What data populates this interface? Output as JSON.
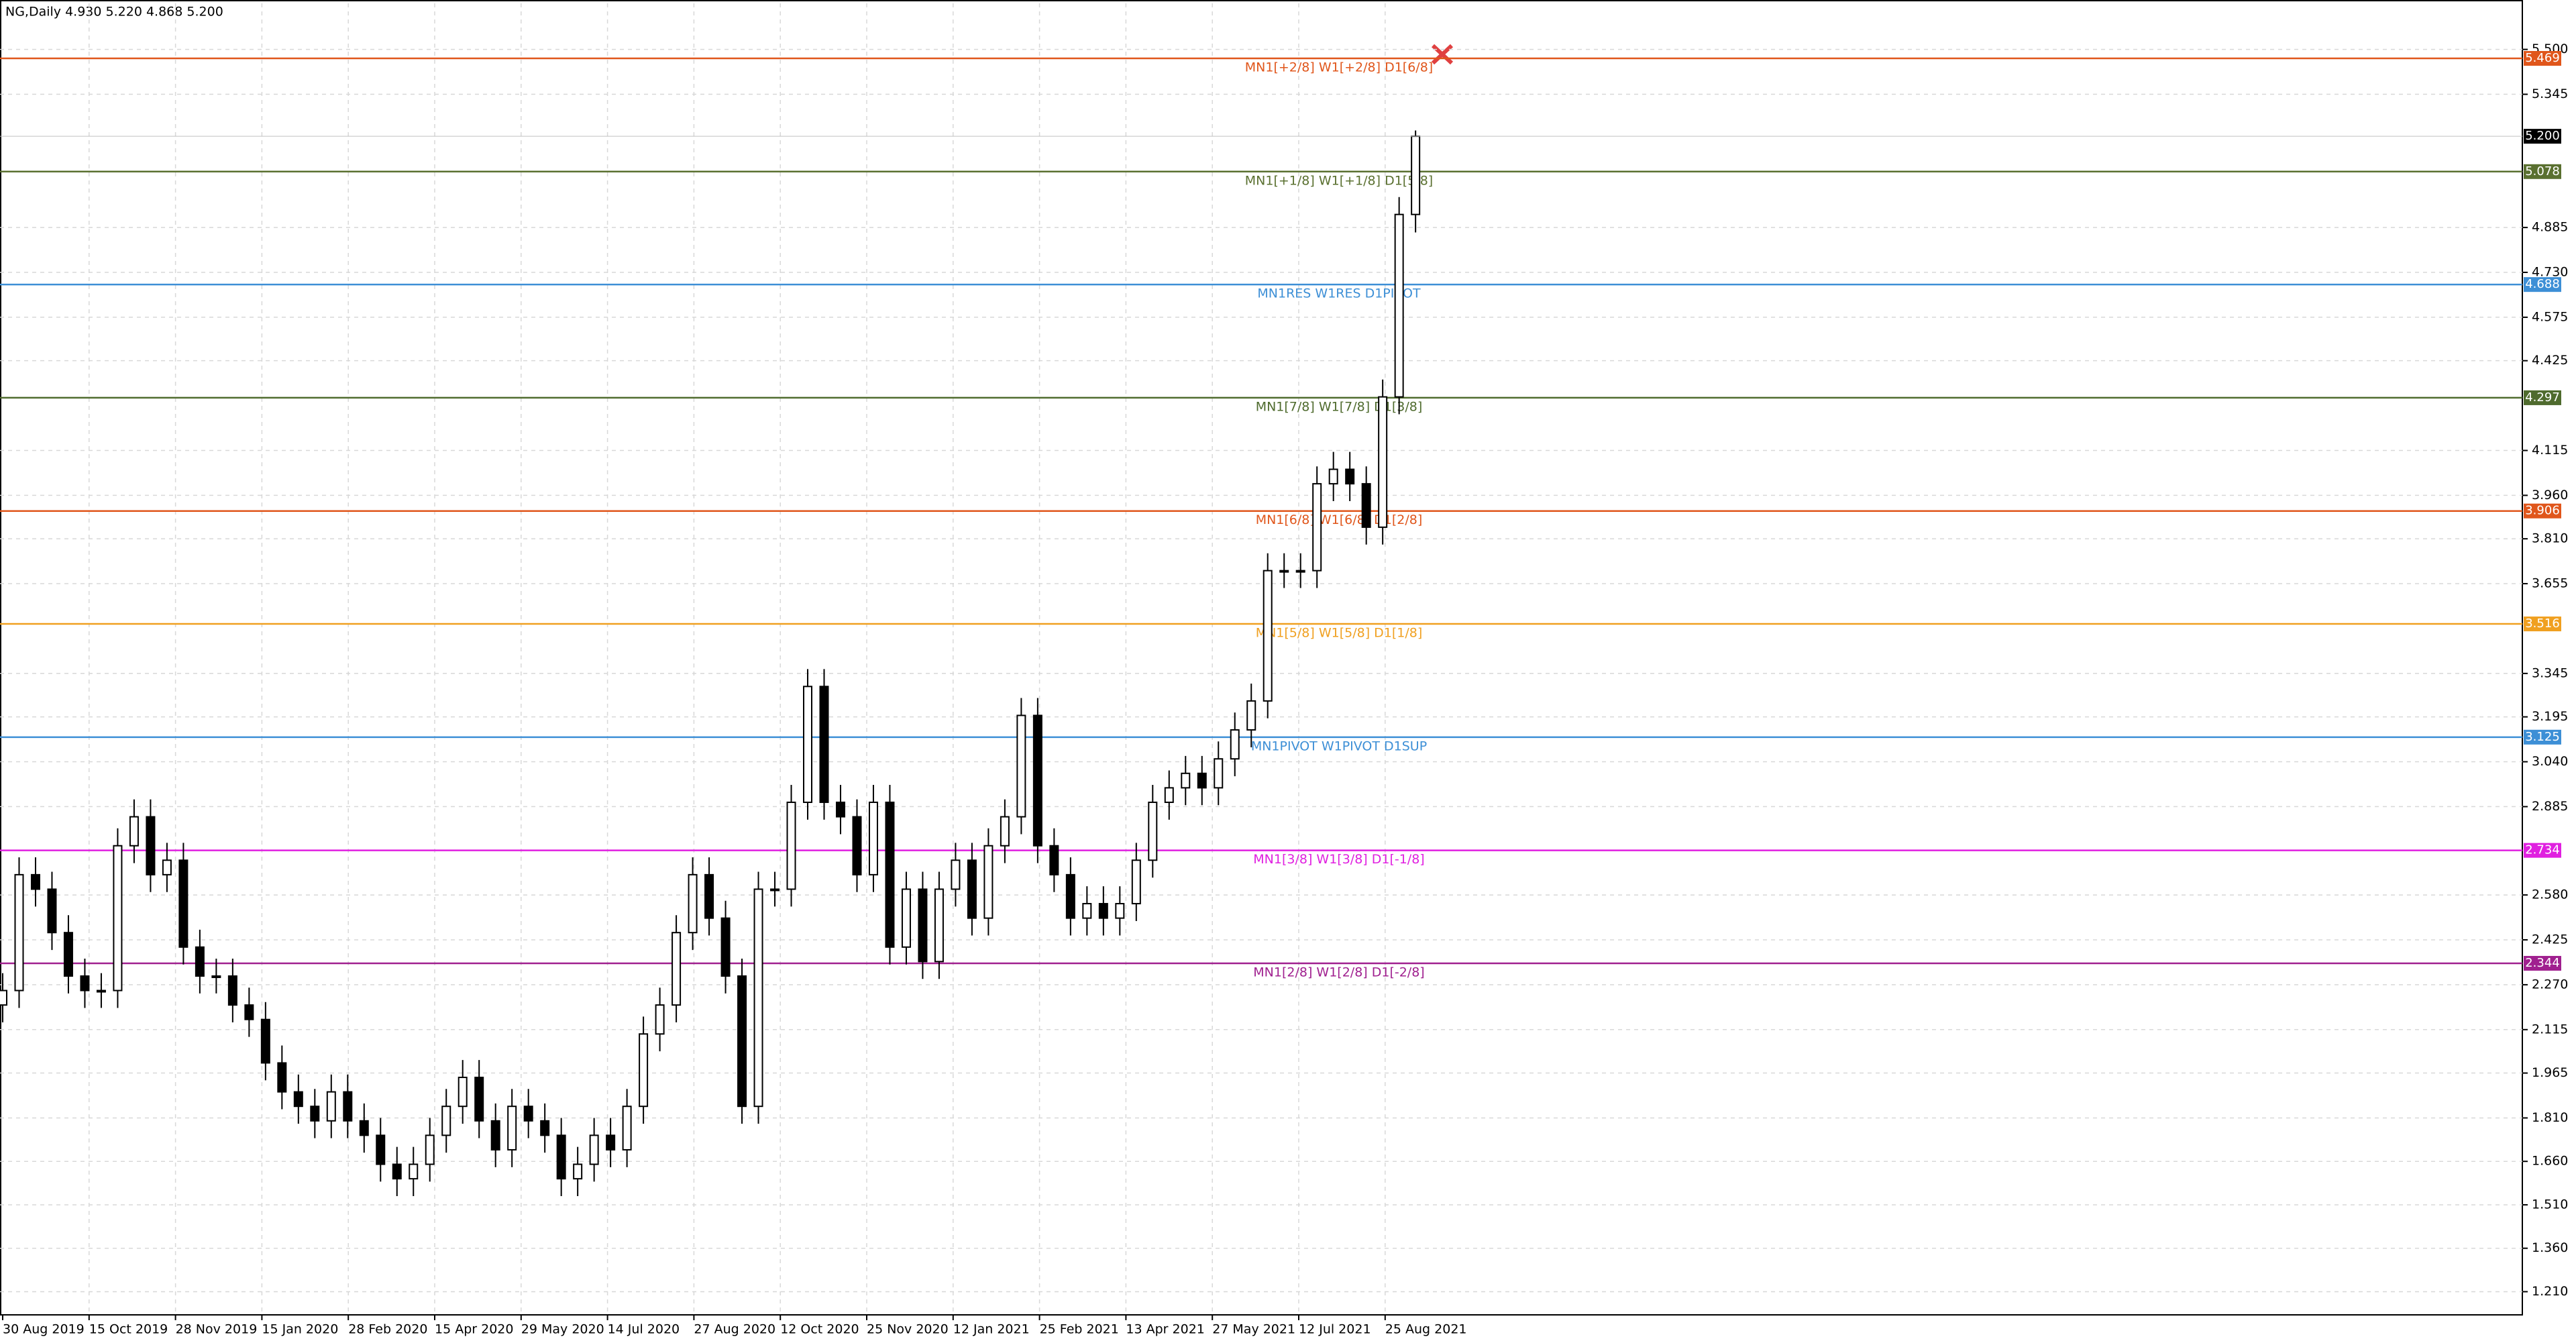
{
  "chart_data": {
    "type": "candlestick",
    "title": "NG,Daily  4.930 5.220 4.868 5.200",
    "up_color": "#ffffff",
    "down_color": "#000000",
    "wick_color": "#000000",
    "grid": true,
    "ylim": [
      1.13,
      5.659
    ],
    "yticks": [
      {
        "value": 5.5,
        "label": "5.500"
      },
      5.345,
      4.885,
      {
        "value": 4.73,
        "label": "4.730"
      },
      4.575,
      4.425,
      4.115,
      {
        "value": 3.96,
        "label": "3.960"
      },
      {
        "value": 3.81,
        "label": "3.810"
      },
      3.655,
      3.345,
      3.195,
      {
        "value": 3.04,
        "label": "3.040"
      },
      2.885,
      {
        "value": 2.58,
        "label": "2.580"
      },
      2.425,
      {
        "value": 2.27,
        "label": "2.270"
      },
      2.115,
      1.965,
      {
        "value": 1.81,
        "label": "1.810"
      },
      {
        "value": 1.66,
        "label": "1.660"
      },
      {
        "value": 1.51,
        "label": "1.510"
      },
      {
        "value": 1.36,
        "label": "1.360"
      },
      {
        "value": 1.21,
        "label": "1.210"
      }
    ],
    "x_labels": [
      "30 Aug 2019",
      "15 Oct 2019",
      "28 Nov 2019",
      "15 Jan 2020",
      "28 Feb 2020",
      "15 Apr 2020",
      "29 May 2020",
      "14 Jul 2020",
      "27 Aug 2020",
      "12 Oct 2020",
      "25 Nov 2020",
      "12 Jan 2021",
      "25 Feb 2021",
      "13 Apr 2021",
      "27 May 2021",
      "12 Jul 2021",
      "25 Aug 2021"
    ],
    "open": [
      2.2,
      2.25,
      2.65,
      2.6,
      2.45,
      2.3,
      2.25,
      2.25,
      2.75,
      2.85,
      2.65,
      2.7,
      2.4,
      2.3,
      2.3,
      2.2,
      2.15,
      2.0,
      1.9,
      1.85,
      1.8,
      1.9,
      1.8,
      1.75,
      1.65,
      1.6,
      1.65,
      1.75,
      1.85,
      1.95,
      1.8,
      1.7,
      1.85,
      1.8,
      1.75,
      1.6,
      1.65,
      1.75,
      1.7,
      1.85,
      2.1,
      2.2,
      2.45,
      2.65,
      2.5,
      2.3,
      1.85,
      2.6,
      2.6,
      2.9,
      3.3,
      2.9,
      2.85,
      2.65,
      2.9,
      2.4,
      2.6,
      2.35,
      2.6,
      2.7,
      2.5,
      2.75,
      2.85,
      3.2,
      2.75,
      2.65,
      2.5,
      2.55,
      2.5,
      2.55,
      2.7,
      2.9,
      2.95,
      3.0,
      2.95,
      3.05,
      3.15,
      3.25,
      3.7,
      3.7,
      3.7,
      4.0,
      4.05,
      4.0,
      3.85,
      4.3,
      4.93
    ],
    "high": [
      2.31,
      2.71,
      2.71,
      2.66,
      2.51,
      2.36,
      2.31,
      2.81,
      2.91,
      2.91,
      2.76,
      2.76,
      2.46,
      2.36,
      2.36,
      2.26,
      2.21,
      2.06,
      1.96,
      1.91,
      1.96,
      1.96,
      1.86,
      1.81,
      1.71,
      1.71,
      1.81,
      1.91,
      2.01,
      2.01,
      1.86,
      1.91,
      1.91,
      1.86,
      1.81,
      1.71,
      1.81,
      1.81,
      1.91,
      2.16,
      2.26,
      2.51,
      2.71,
      2.71,
      2.56,
      2.36,
      2.66,
      2.66,
      2.96,
      3.36,
      3.36,
      2.96,
      2.91,
      2.96,
      2.96,
      2.66,
      2.66,
      2.66,
      2.76,
      2.76,
      2.81,
      2.91,
      3.26,
      3.26,
      2.81,
      2.71,
      2.61,
      2.61,
      2.61,
      2.76,
      2.96,
      3.01,
      3.06,
      3.06,
      3.11,
      3.21,
      3.31,
      3.76,
      3.76,
      3.76,
      4.06,
      4.11,
      4.11,
      4.06,
      4.36,
      4.99,
      5.22
    ],
    "low": [
      2.14,
      2.19,
      2.54,
      2.39,
      2.24,
      2.19,
      2.19,
      2.19,
      2.69,
      2.59,
      2.59,
      2.34,
      2.24,
      2.24,
      2.14,
      2.09,
      1.94,
      1.84,
      1.79,
      1.74,
      1.74,
      1.74,
      1.69,
      1.59,
      1.54,
      1.54,
      1.59,
      1.69,
      1.79,
      1.74,
      1.64,
      1.64,
      1.74,
      1.69,
      1.54,
      1.54,
      1.59,
      1.64,
      1.64,
      1.79,
      2.04,
      2.14,
      2.39,
      2.44,
      2.24,
      1.79,
      1.79,
      2.54,
      2.54,
      2.84,
      2.84,
      2.79,
      2.59,
      2.59,
      2.34,
      2.34,
      2.29,
      2.29,
      2.54,
      2.44,
      2.44,
      2.69,
      2.79,
      2.69,
      2.59,
      2.44,
      2.44,
      2.44,
      2.44,
      2.49,
      2.64,
      2.84,
      2.89,
      2.89,
      2.89,
      2.99,
      3.09,
      3.19,
      3.64,
      3.64,
      3.64,
      3.94,
      3.94,
      3.79,
      3.79,
      4.24,
      4.868
    ],
    "close": [
      2.25,
      2.65,
      2.6,
      2.45,
      2.3,
      2.25,
      2.25,
      2.75,
      2.85,
      2.65,
      2.7,
      2.4,
      2.3,
      2.3,
      2.2,
      2.15,
      2.0,
      1.9,
      1.85,
      1.8,
      1.9,
      1.8,
      1.75,
      1.65,
      1.6,
      1.65,
      1.75,
      1.85,
      1.95,
      1.8,
      1.7,
      1.85,
      1.8,
      1.75,
      1.6,
      1.65,
      1.75,
      1.7,
      1.85,
      2.1,
      2.2,
      2.45,
      2.65,
      2.5,
      2.3,
      1.85,
      2.6,
      2.6,
      2.9,
      3.3,
      2.9,
      2.85,
      2.65,
      2.9,
      2.4,
      2.6,
      2.35,
      2.6,
      2.7,
      2.5,
      2.75,
      2.85,
      3.2,
      2.75,
      2.65,
      2.5,
      2.55,
      2.5,
      2.55,
      2.7,
      2.9,
      2.95,
      3.0,
      2.95,
      3.05,
      3.15,
      3.25,
      3.7,
      3.7,
      3.7,
      4.0,
      4.05,
      4.0,
      3.85,
      4.3,
      4.93,
      5.2
    ],
    "levels": [
      {
        "name": "MN1[+2/8] W1[+2/8] D1[6/8]",
        "value": 5.469,
        "color": "#e0561b"
      },
      {
        "name": "MN1[+1/8] W1[+1/8] D1[5/8]",
        "value": 5.078,
        "color": "#5a7030"
      },
      {
        "name": "MN1RES W1RES D1PIVOT",
        "value": 4.688,
        "color": "#3d8fd6"
      },
      {
        "name": "MN1[7/8] W1[7/8] D1[3/8]",
        "value": 4.297,
        "color": "#4f6b2e"
      },
      {
        "name": "MN1[6/8] W1[6/8] D1[2/8]",
        "value": 3.906,
        "color": "#e0561b"
      },
      {
        "name": "MN1[5/8] W1[5/8] D1[1/8]",
        "value": 3.516,
        "color": "#f0a020"
      },
      {
        "name": "MN1PIVOT W1PIVOT D1SUP",
        "value": 3.125,
        "color": "#3d8fd6"
      },
      {
        "name": "MN1[3/8] W1[3/8] D1[-1/8]",
        "value": 2.734,
        "color": "#e020e0"
      },
      {
        "name": "MN1[2/8] W1[2/8] D1[-2/8]",
        "value": 2.344,
        "color": "#a0208f"
      }
    ],
    "last_price": {
      "value": 5.2,
      "label": "5.200"
    },
    "last_price_color": "#000000"
  }
}
